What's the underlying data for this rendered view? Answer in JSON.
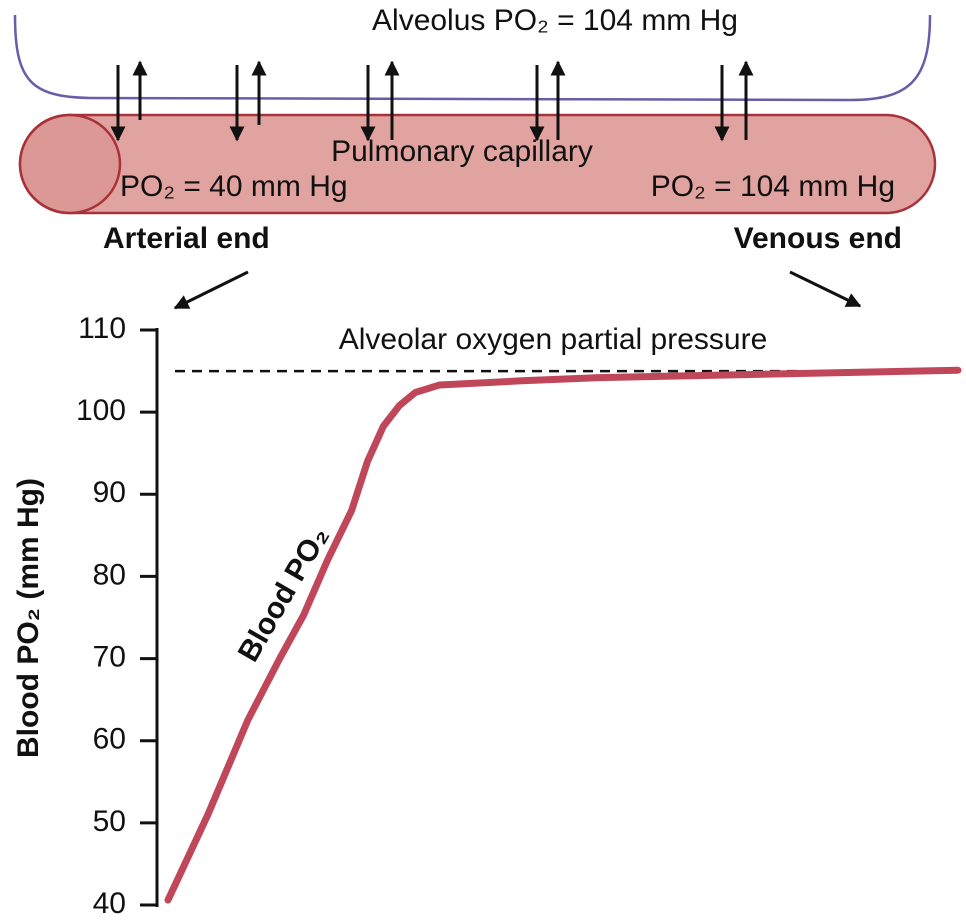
{
  "diagram": {
    "alveolus_label": "Alveolus PO₂ = 104 mm Hg",
    "capillary_label": "Pulmonary capillary",
    "arterial_po2": "PO₂ = 40 mm Hg",
    "venous_po2": "PO₂ = 104 mm Hg",
    "arterial_end": "Arterial end",
    "venous_end": "Venous end"
  },
  "chart_data": {
    "type": "line",
    "y_label": "Blood PO₂ (mm Hg)",
    "annotation": "Alveolar oxygen partial pressure",
    "reference_line": 105,
    "x": [
      0.01,
      0.06,
      0.11,
      0.15,
      0.18,
      0.21,
      0.24,
      0.26,
      0.28,
      0.3,
      0.32,
      0.35,
      0.45,
      0.55,
      0.8,
      1.0
    ],
    "series": [
      {
        "name": "Blood PO₂",
        "color": "#c0475a",
        "values": [
          40.6,
          51,
          62.5,
          70,
          75.3,
          82,
          88,
          94,
          98.3,
          100.8,
          102.4,
          103.3,
          103.8,
          104.2,
          104.7,
          105.1
        ]
      }
    ],
    "xlim": [
      0,
      1
    ],
    "ylim": [
      40,
      110
    ],
    "yticks": [
      40,
      50,
      60,
      70,
      80,
      90,
      100,
      110
    ]
  }
}
